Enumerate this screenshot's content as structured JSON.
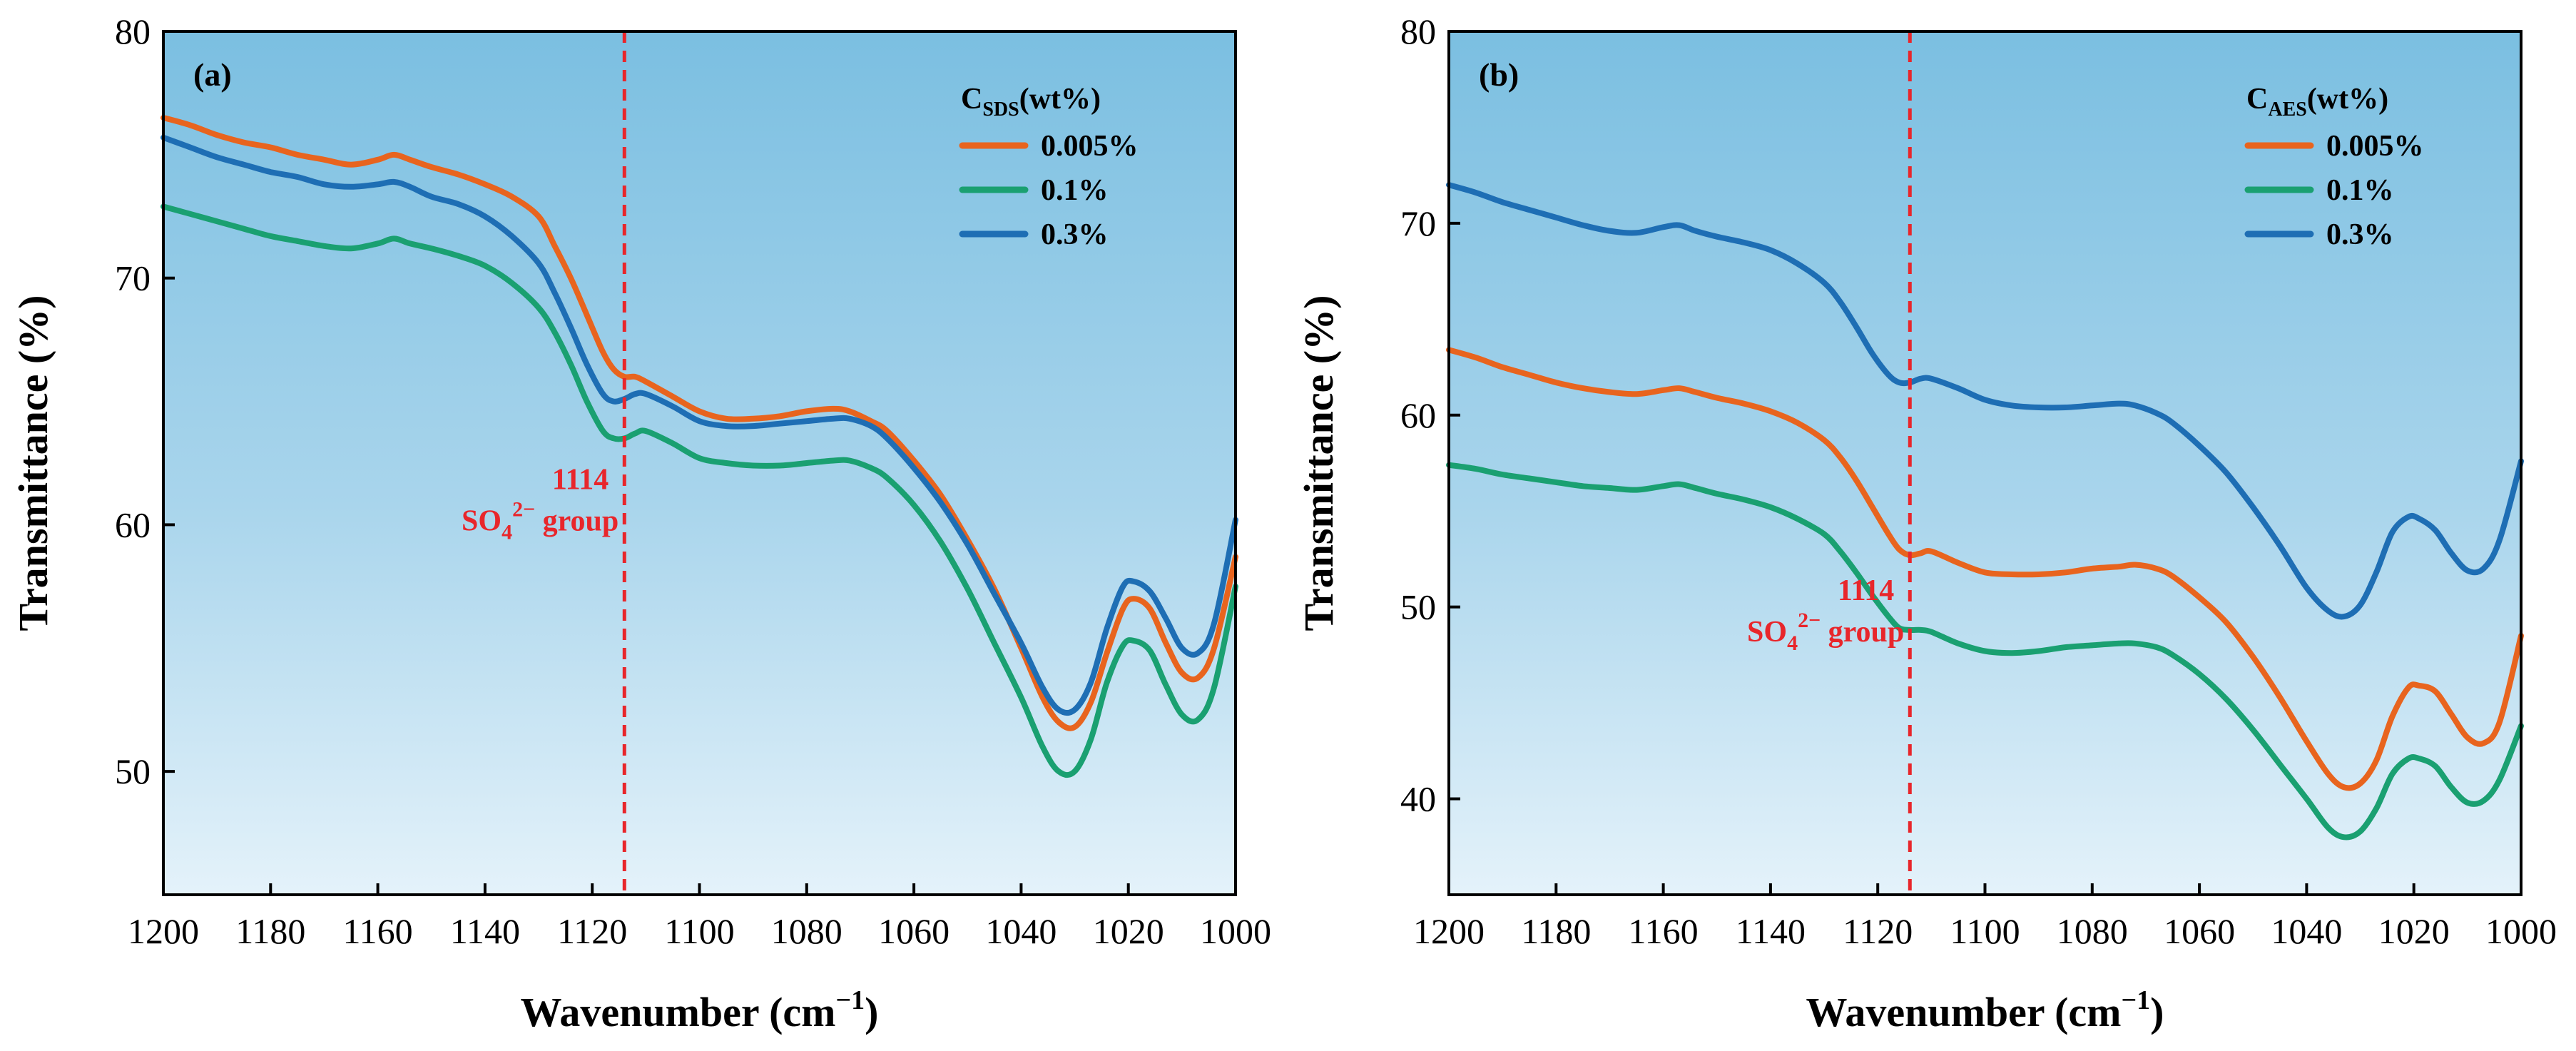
{
  "chart_data": [
    {
      "type": "line",
      "panel_label": "(a)",
      "xlabel": "Wavenumber (cm",
      "xlabel_sup": "−1",
      "xlabel_end": ")",
      "ylabel": "Transmittance (%)",
      "xlim": [
        1200,
        1000
      ],
      "ylim": [
        45,
        80
      ],
      "x_ticks": [
        1200,
        1180,
        1160,
        1140,
        1120,
        1100,
        1080,
        1060,
        1040,
        1020,
        1000
      ],
      "y_ticks": [
        50,
        60,
        70,
        80
      ],
      "legend": {
        "title_main": "C",
        "title_sub": "SDS",
        "title_rest": "(wt%)",
        "placement": "top-right"
      },
      "annotation": {
        "x": 1114,
        "line1": "1114",
        "line2_main": "SO",
        "line2_sub": "4",
        "line2_sup": "2−",
        "line2_rest": " group",
        "side": "left",
        "y_value": 60
      },
      "series": [
        {
          "name": "0.005%",
          "color": "#e8641e",
          "x": [
            1200,
            1195,
            1190,
            1185,
            1180,
            1175,
            1170,
            1165,
            1160,
            1157,
            1154,
            1150,
            1145,
            1140,
            1135,
            1130,
            1127,
            1124,
            1121,
            1118,
            1116,
            1114,
            1112,
            1110,
            1105,
            1100,
            1095,
            1090,
            1085,
            1080,
            1075,
            1072,
            1068,
            1065,
            1060,
            1055,
            1050,
            1045,
            1040,
            1036,
            1033,
            1030,
            1027,
            1024,
            1021,
            1019,
            1016,
            1013,
            1010,
            1007,
            1004,
            1000
          ],
          "y": [
            76.5,
            76.2,
            75.8,
            75.5,
            75.3,
            75.0,
            74.8,
            74.6,
            74.8,
            75.0,
            74.8,
            74.5,
            74.2,
            73.8,
            73.3,
            72.5,
            71.3,
            70.0,
            68.5,
            67.0,
            66.3,
            66.0,
            66.0,
            65.8,
            65.2,
            64.6,
            64.3,
            64.3,
            64.4,
            64.6,
            64.7,
            64.6,
            64.2,
            63.8,
            62.6,
            61.2,
            59.4,
            57.4,
            55.0,
            53.0,
            52.0,
            51.8,
            52.8,
            54.8,
            56.6,
            57.0,
            56.6,
            55.2,
            54.0,
            53.8,
            55.0,
            58.7
          ]
        },
        {
          "name": "0.1%",
          "color": "#1aa071",
          "x": [
            1200,
            1195,
            1190,
            1185,
            1180,
            1175,
            1170,
            1165,
            1160,
            1157,
            1154,
            1150,
            1145,
            1140,
            1135,
            1130,
            1127,
            1124,
            1121,
            1118,
            1116,
            1114,
            1112,
            1110,
            1105,
            1100,
            1095,
            1090,
            1085,
            1080,
            1075,
            1072,
            1068,
            1065,
            1060,
            1055,
            1050,
            1045,
            1040,
            1036,
            1033,
            1030,
            1027,
            1024,
            1021,
            1019,
            1016,
            1013,
            1010,
            1007,
            1004,
            1000
          ],
          "y": [
            72.9,
            72.6,
            72.3,
            72.0,
            71.7,
            71.5,
            71.3,
            71.2,
            71.4,
            71.6,
            71.4,
            71.2,
            70.9,
            70.5,
            69.8,
            68.8,
            67.8,
            66.5,
            65.0,
            63.8,
            63.5,
            63.5,
            63.7,
            63.8,
            63.3,
            62.7,
            62.5,
            62.4,
            62.4,
            62.5,
            62.6,
            62.6,
            62.3,
            61.9,
            60.8,
            59.3,
            57.4,
            55.2,
            53.0,
            51.0,
            50.0,
            50.0,
            51.3,
            53.6,
            55.1,
            55.3,
            54.9,
            53.5,
            52.3,
            52.1,
            53.4,
            57.5
          ]
        },
        {
          "name": "0.3%",
          "color": "#1e6eb4",
          "x": [
            1200,
            1195,
            1190,
            1185,
            1180,
            1175,
            1170,
            1165,
            1160,
            1157,
            1154,
            1150,
            1145,
            1140,
            1135,
            1130,
            1127,
            1124,
            1121,
            1118,
            1116,
            1114,
            1112,
            1110,
            1105,
            1100,
            1095,
            1090,
            1085,
            1080,
            1075,
            1072,
            1068,
            1065,
            1060,
            1055,
            1050,
            1045,
            1040,
            1036,
            1033,
            1030,
            1027,
            1024,
            1021,
            1019,
            1016,
            1013,
            1010,
            1007,
            1004,
            1000
          ],
          "y": [
            75.7,
            75.3,
            74.9,
            74.6,
            74.3,
            74.1,
            73.8,
            73.7,
            73.8,
            73.9,
            73.7,
            73.3,
            73.0,
            72.5,
            71.7,
            70.6,
            69.4,
            68.0,
            66.5,
            65.3,
            65.0,
            65.1,
            65.3,
            65.3,
            64.8,
            64.2,
            64.0,
            64.0,
            64.1,
            64.2,
            64.3,
            64.3,
            64.0,
            63.5,
            62.3,
            60.9,
            59.2,
            57.2,
            55.2,
            53.4,
            52.5,
            52.5,
            53.6,
            55.8,
            57.5,
            57.7,
            57.3,
            56.2,
            55.0,
            54.8,
            56.0,
            60.2
          ]
        }
      ]
    },
    {
      "type": "line",
      "panel_label": "(b)",
      "xlabel": "Wavenumber (cm",
      "xlabel_sup": "−1",
      "xlabel_end": ")",
      "ylabel": "Transmittance (%)",
      "xlim": [
        1200,
        1000
      ],
      "ylim": [
        35,
        80
      ],
      "x_ticks": [
        1200,
        1180,
        1160,
        1140,
        1120,
        1100,
        1080,
        1060,
        1040,
        1020,
        1000
      ],
      "y_ticks": [
        40,
        50,
        60,
        70,
        80
      ],
      "legend": {
        "title_main": "C",
        "title_sub": "AES",
        "title_rest": "(wt%)",
        "placement": "top-right"
      },
      "annotation": {
        "x": 1114,
        "line1": "1114",
        "line2_main": "SO",
        "line2_sub": "4",
        "line2_sup": "2−",
        "line2_rest": " group",
        "side": "left",
        "y_value": 48.5
      },
      "series": [
        {
          "name": "0.005%",
          "color": "#e8641e",
          "x": [
            1200,
            1195,
            1190,
            1185,
            1180,
            1175,
            1170,
            1165,
            1160,
            1157,
            1154,
            1150,
            1145,
            1140,
            1135,
            1130,
            1127,
            1124,
            1121,
            1118,
            1116,
            1114,
            1112,
            1110,
            1105,
            1100,
            1095,
            1090,
            1085,
            1080,
            1075,
            1072,
            1068,
            1065,
            1060,
            1055,
            1050,
            1045,
            1040,
            1036,
            1033,
            1030,
            1027,
            1024,
            1021,
            1019,
            1016,
            1013,
            1010,
            1007,
            1004,
            1000
          ],
          "y": [
            63.4,
            63.0,
            62.5,
            62.1,
            61.7,
            61.4,
            61.2,
            61.1,
            61.3,
            61.4,
            61.2,
            60.9,
            60.6,
            60.2,
            59.6,
            58.7,
            57.8,
            56.6,
            55.2,
            53.8,
            53.0,
            52.7,
            52.8,
            52.9,
            52.3,
            51.8,
            51.7,
            51.7,
            51.8,
            52.0,
            52.1,
            52.2,
            52.0,
            51.6,
            50.5,
            49.2,
            47.4,
            45.3,
            43.0,
            41.3,
            40.6,
            40.8,
            42.0,
            44.3,
            45.8,
            45.9,
            45.6,
            44.4,
            43.2,
            42.9,
            44.0,
            48.5
          ]
        },
        {
          "name": "0.1%",
          "color": "#1aa071",
          "x": [
            1200,
            1195,
            1190,
            1185,
            1180,
            1175,
            1170,
            1165,
            1160,
            1157,
            1154,
            1150,
            1145,
            1140,
            1135,
            1130,
            1127,
            1124,
            1121,
            1118,
            1116,
            1114,
            1112,
            1110,
            1105,
            1100,
            1095,
            1090,
            1085,
            1080,
            1075,
            1072,
            1068,
            1065,
            1060,
            1055,
            1050,
            1045,
            1040,
            1036,
            1033,
            1030,
            1027,
            1024,
            1021,
            1019,
            1016,
            1013,
            1010,
            1007,
            1004,
            1000
          ],
          "y": [
            57.4,
            57.2,
            56.9,
            56.7,
            56.5,
            56.3,
            56.2,
            56.1,
            56.3,
            56.4,
            56.2,
            55.9,
            55.6,
            55.2,
            54.6,
            53.8,
            52.9,
            51.8,
            50.6,
            49.5,
            48.9,
            48.8,
            48.8,
            48.7,
            48.1,
            47.7,
            47.6,
            47.7,
            47.9,
            48.0,
            48.1,
            48.1,
            47.9,
            47.5,
            46.5,
            45.2,
            43.6,
            41.8,
            40.0,
            38.5,
            38.0,
            38.3,
            39.5,
            41.3,
            42.1,
            42.1,
            41.7,
            40.6,
            39.8,
            39.9,
            41.0,
            43.8
          ]
        },
        {
          "name": "0.3%",
          "color": "#1e6eb4",
          "x": [
            1200,
            1195,
            1190,
            1185,
            1180,
            1175,
            1170,
            1165,
            1160,
            1157,
            1154,
            1150,
            1145,
            1140,
            1135,
            1130,
            1127,
            1124,
            1121,
            1118,
            1116,
            1114,
            1112,
            1110,
            1105,
            1100,
            1095,
            1090,
            1085,
            1080,
            1075,
            1072,
            1068,
            1065,
            1060,
            1055,
            1050,
            1045,
            1040,
            1036,
            1033,
            1030,
            1027,
            1024,
            1021,
            1019,
            1016,
            1013,
            1010,
            1007,
            1004,
            1000
          ],
          "y": [
            72.0,
            71.6,
            71.1,
            70.7,
            70.3,
            69.9,
            69.6,
            69.5,
            69.8,
            69.9,
            69.6,
            69.3,
            69.0,
            68.6,
            67.9,
            66.9,
            65.9,
            64.6,
            63.2,
            62.1,
            61.7,
            61.7,
            61.9,
            61.9,
            61.4,
            60.8,
            60.5,
            60.4,
            60.4,
            60.5,
            60.6,
            60.5,
            60.1,
            59.6,
            58.4,
            57.0,
            55.2,
            53.2,
            51.0,
            49.8,
            49.5,
            50.1,
            51.8,
            53.9,
            54.7,
            54.6,
            54.0,
            52.8,
            51.9,
            52.0,
            53.5,
            57.6
          ]
        }
      ]
    }
  ]
}
